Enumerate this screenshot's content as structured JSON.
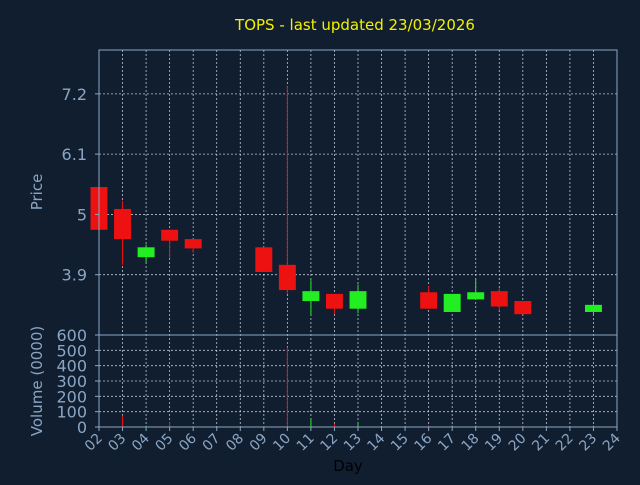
{
  "colors": {
    "background": "#111e30",
    "axis": "#8aa6c4",
    "grid": "#d9e2ec",
    "title": "#f2f200",
    "up": "#22ee22",
    "down": "#ee1111"
  },
  "chart_data": {
    "type": "candlestick",
    "title": "TOPS - last updated 23/03/2026",
    "xlabel": "Day",
    "price": {
      "ylabel": "Price",
      "ylim": [
        2.8,
        8.0
      ],
      "yticks": [
        {
          "value": 3.9,
          "label": "3.9"
        },
        {
          "value": 5.0,
          "label": "5"
        },
        {
          "value": 6.1,
          "label": "6.1"
        },
        {
          "value": 7.2,
          "label": "7.2"
        }
      ]
    },
    "volume": {
      "ylabel": "Volume (0000)",
      "ylim": [
        0,
        600
      ],
      "yticks": [
        0,
        100,
        200,
        300,
        400,
        500,
        600
      ]
    },
    "xticks": [
      "02",
      "03",
      "04",
      "05",
      "06",
      "07",
      "08",
      "09",
      "10",
      "11",
      "12",
      "13",
      "14",
      "15",
      "16",
      "17",
      "18",
      "19",
      "20",
      "21",
      "22",
      "23",
      "24"
    ],
    "grid": true,
    "candles": [
      {
        "day": "02",
        "open": 5.5,
        "high": 5.5,
        "low": 4.72,
        "close": 4.72,
        "volume": 5
      },
      {
        "day": "03",
        "open": 5.1,
        "high": 5.25,
        "low": 4.08,
        "close": 4.55,
        "volume": 75
      },
      {
        "day": "04",
        "open": 4.22,
        "high": 4.45,
        "low": 4.12,
        "close": 4.4,
        "volume": 8
      },
      {
        "day": "05",
        "open": 4.72,
        "high": 4.72,
        "low": 4.2,
        "close": 4.52,
        "volume": 35
      },
      {
        "day": "06",
        "open": 4.55,
        "high": 4.55,
        "low": 4.3,
        "close": 4.38,
        "volume": 6
      },
      {
        "day": "09",
        "open": 4.4,
        "high": 4.4,
        "low": 3.95,
        "close": 3.95,
        "volume": 6
      },
      {
        "day": "10",
        "open": 4.08,
        "high": 7.35,
        "low": 3.55,
        "close": 3.62,
        "volume": 520
      },
      {
        "day": "11",
        "open": 3.42,
        "high": 3.8,
        "low": 3.15,
        "close": 3.6,
        "volume": 55
      },
      {
        "day": "12",
        "open": 3.55,
        "high": 3.55,
        "low": 3.18,
        "close": 3.28,
        "volume": 22
      },
      {
        "day": "13",
        "open": 3.28,
        "high": 3.72,
        "low": 3.2,
        "close": 3.6,
        "volume": 30
      },
      {
        "day": "16",
        "open": 3.58,
        "high": 3.7,
        "low": 3.28,
        "close": 3.28,
        "volume": 12
      },
      {
        "day": "17",
        "open": 3.22,
        "high": 3.55,
        "low": 3.22,
        "close": 3.55,
        "volume": 10
      },
      {
        "day": "18",
        "open": 3.45,
        "high": 3.82,
        "low": 3.45,
        "close": 3.58,
        "volume": 8
      },
      {
        "day": "19",
        "open": 3.6,
        "high": 3.65,
        "low": 3.25,
        "close": 3.32,
        "volume": 12
      },
      {
        "day": "20",
        "open": 3.42,
        "high": 3.42,
        "low": 3.18,
        "close": 3.18,
        "volume": 10
      },
      {
        "day": "23",
        "open": 3.22,
        "high": 3.42,
        "low": 3.15,
        "close": 3.35,
        "volume": 8
      }
    ]
  }
}
